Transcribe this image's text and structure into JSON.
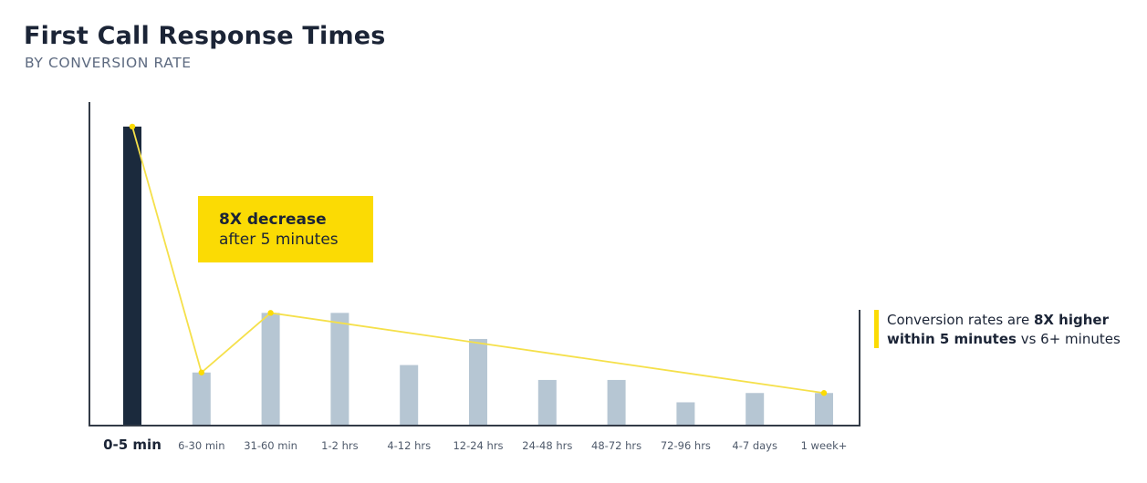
{
  "header": {
    "title": "First Call Response Times",
    "subtitle": "BY CONVERSION RATE"
  },
  "callout": {
    "line1": "8X decrease",
    "line2": "after 5 minutes"
  },
  "note": {
    "part1": "Conversion rates are ",
    "bold1": "8X higher",
    "bold2": "within 5 minutes",
    "part2": " vs 6+ minutes"
  },
  "colors": {
    "highlight_bar": "#1b2a3d",
    "bar": "#b6c6d3",
    "trend_line": "#f5e04a",
    "accent": "#fbdb04",
    "axis": "#333b47"
  },
  "chart_data": {
    "type": "bar",
    "categories": [
      "0-5 min",
      "6-30 min",
      "31-60 min",
      "1-2 hrs",
      "4-12 hrs",
      "12-24 hrs",
      "24-48 hrs",
      "48-72 hrs",
      "72-96 hrs",
      "4-7 days",
      "1 week+"
    ],
    "values": [
      8.0,
      1.4,
      3.0,
      3.0,
      1.6,
      2.3,
      1.2,
      1.2,
      0.6,
      0.85,
      0.85
    ],
    "highlight_index": 0,
    "trend_points": [
      {
        "category": "0-5 min",
        "value": 8.0
      },
      {
        "category": "6-30 min",
        "value": 1.4
      },
      {
        "category": "31-60 min",
        "value": 3.0
      },
      {
        "category": "1 week+",
        "value": 0.85
      }
    ],
    "ylim": [
      0,
      9
    ],
    "grid": false,
    "legend": "none"
  }
}
